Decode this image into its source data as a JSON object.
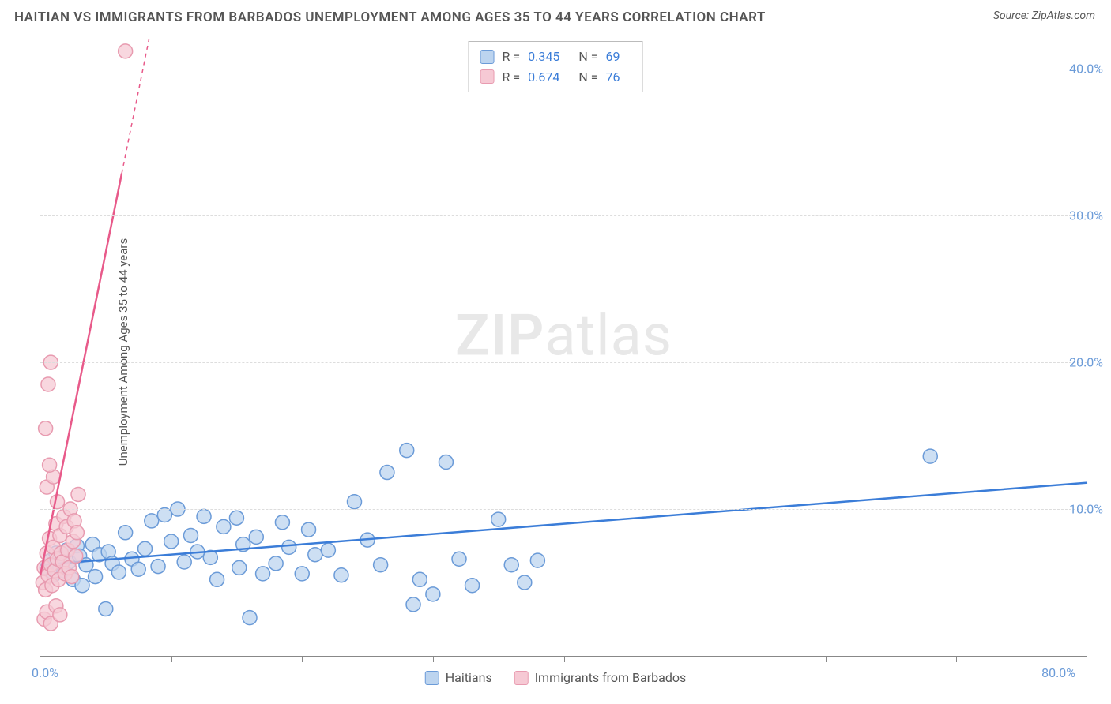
{
  "header": {
    "title": "HAITIAN VS IMMIGRANTS FROM BARBADOS UNEMPLOYMENT AMONG AGES 35 TO 44 YEARS CORRELATION CHART",
    "source_label": "Source:",
    "source_value": "ZipAtlas.com"
  },
  "watermark": {
    "part1": "ZIP",
    "part2": "atlas"
  },
  "chart": {
    "type": "scatter",
    "y_axis_label": "Unemployment Among Ages 35 to 44 years",
    "x_origin": "0.0%",
    "x_max": "80.0%",
    "xlim": [
      0,
      80
    ],
    "ylim": [
      0,
      42
    ],
    "y_ticks": [
      {
        "val": 10,
        "label": "10.0%"
      },
      {
        "val": 20,
        "label": "20.0%"
      },
      {
        "val": 30,
        "label": "30.0%"
      },
      {
        "val": 40,
        "label": "40.0%"
      }
    ],
    "x_tick_positions": [
      10,
      20,
      30,
      40,
      50,
      60,
      70
    ],
    "grid_color": "#dddddd",
    "axis_color": "#888888",
    "background_color": "#ffffff",
    "tick_label_color": "#6b9bd8",
    "series": [
      {
        "name": "Haitians",
        "marker_color_fill": "#bcd4ef",
        "marker_color_stroke": "#6b9bd8",
        "marker_radius": 9,
        "line_color": "#3b7dd8",
        "line_width": 2.5,
        "trend": {
          "x1": 0,
          "y1": 6.2,
          "x2": 80,
          "y2": 11.8
        },
        "stats": {
          "R": "0.345",
          "N": "69"
        },
        "points": [
          [
            0.5,
            6
          ],
          [
            0.8,
            6.5
          ],
          [
            1,
            5.5
          ],
          [
            1.2,
            7
          ],
          [
            1.5,
            6
          ],
          [
            1.8,
            5.8
          ],
          [
            2,
            7.2
          ],
          [
            2.2,
            6.4
          ],
          [
            2.5,
            5.2
          ],
          [
            2.8,
            7.5
          ],
          [
            3,
            6.8
          ],
          [
            3.2,
            4.8
          ],
          [
            3.5,
            6.2
          ],
          [
            4,
            7.6
          ],
          [
            4.2,
            5.4
          ],
          [
            4.5,
            6.9
          ],
          [
            5,
            3.2
          ],
          [
            5.2,
            7.1
          ],
          [
            5.5,
            6.3
          ],
          [
            6,
            5.7
          ],
          [
            6.5,
            8.4
          ],
          [
            7,
            6.6
          ],
          [
            7.5,
            5.9
          ],
          [
            8,
            7.3
          ],
          [
            8.5,
            9.2
          ],
          [
            9,
            6.1
          ],
          [
            9.5,
            9.6
          ],
          [
            10,
            7.8
          ],
          [
            10.5,
            10
          ],
          [
            11,
            6.4
          ],
          [
            11.5,
            8.2
          ],
          [
            12,
            7.1
          ],
          [
            12.5,
            9.5
          ],
          [
            13,
            6.7
          ],
          [
            13.5,
            5.2
          ],
          [
            14,
            8.8
          ],
          [
            15,
            9.4
          ],
          [
            15.2,
            6
          ],
          [
            15.5,
            7.6
          ],
          [
            16,
            2.6
          ],
          [
            16.5,
            8.1
          ],
          [
            17,
            5.6
          ],
          [
            18,
            6.3
          ],
          [
            18.5,
            9.1
          ],
          [
            19,
            7.4
          ],
          [
            20,
            5.6
          ],
          [
            20.5,
            8.6
          ],
          [
            21,
            6.9
          ],
          [
            22,
            7.2
          ],
          [
            23,
            5.5
          ],
          [
            24,
            10.5
          ],
          [
            25,
            7.9
          ],
          [
            26,
            6.2
          ],
          [
            26.5,
            12.5
          ],
          [
            28,
            14.0
          ],
          [
            28.5,
            3.5
          ],
          [
            29,
            5.2
          ],
          [
            30,
            4.2
          ],
          [
            31,
            13.2
          ],
          [
            32,
            6.6
          ],
          [
            33,
            4.8
          ],
          [
            35,
            9.3
          ],
          [
            36,
            6.2
          ],
          [
            37,
            5
          ],
          [
            38,
            6.5
          ],
          [
            68,
            13.6
          ]
        ]
      },
      {
        "name": "Immigrants from Barbados",
        "marker_color_fill": "#f6c9d4",
        "marker_color_stroke": "#e89bb0",
        "marker_radius": 9,
        "line_color": "#e85a8a",
        "line_width": 2.5,
        "trend": {
          "x1": 0,
          "y1": 5.5,
          "x2": 8.3,
          "y2": 42
        },
        "trend_dashed_extension": true,
        "stats": {
          "R": "0.674",
          "N": "76"
        },
        "points": [
          [
            0.2,
            5
          ],
          [
            0.3,
            6
          ],
          [
            0.4,
            4.5
          ],
          [
            0.5,
            7
          ],
          [
            0.6,
            5.5
          ],
          [
            0.7,
            8
          ],
          [
            0.8,
            6.2
          ],
          [
            0.9,
            4.8
          ],
          [
            1,
            7.4
          ],
          [
            1.1,
            5.8
          ],
          [
            1.2,
            9
          ],
          [
            1.3,
            6.6
          ],
          [
            1.4,
            5.2
          ],
          [
            1.5,
            8.2
          ],
          [
            1.6,
            7
          ],
          [
            1.7,
            6.4
          ],
          [
            1.8,
            9.5
          ],
          [
            1.9,
            5.6
          ],
          [
            2,
            8.8
          ],
          [
            2.1,
            7.2
          ],
          [
            2.2,
            6
          ],
          [
            2.3,
            10
          ],
          [
            2.4,
            5.4
          ],
          [
            2.5,
            7.8
          ],
          [
            2.6,
            9.2
          ],
          [
            2.7,
            6.8
          ],
          [
            2.8,
            8.4
          ],
          [
            2.9,
            11
          ],
          [
            0.3,
            2.5
          ],
          [
            0.5,
            3
          ],
          [
            0.8,
            2.2
          ],
          [
            1.2,
            3.4
          ],
          [
            1.5,
            2.8
          ],
          [
            0.4,
            15.5
          ],
          [
            0.6,
            18.5
          ],
          [
            0.8,
            20
          ],
          [
            0.5,
            11.5
          ],
          [
            1,
            12.2
          ],
          [
            1.3,
            10.5
          ],
          [
            0.7,
            13
          ],
          [
            6.5,
            41.2
          ]
        ]
      }
    ]
  },
  "stats_legend": {
    "rows": [
      {
        "swatch_fill": "#bcd4ef",
        "swatch_stroke": "#6b9bd8",
        "R": "0.345",
        "N": "69"
      },
      {
        "swatch_fill": "#f6c9d4",
        "swatch_stroke": "#e89bb0",
        "R": "0.674",
        "N": "76"
      }
    ],
    "R_label": "R =",
    "N_label": "N ="
  },
  "bottom_legend": {
    "items": [
      {
        "swatch_fill": "#bcd4ef",
        "swatch_stroke": "#6b9bd8",
        "label": "Haitians"
      },
      {
        "swatch_fill": "#f6c9d4",
        "swatch_stroke": "#e89bb0",
        "label": "Immigrants from Barbados"
      }
    ]
  }
}
